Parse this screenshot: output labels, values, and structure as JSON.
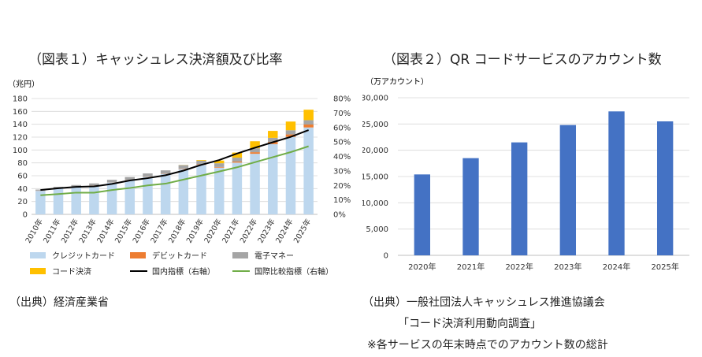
{
  "chart_data": [
    {
      "type": "bar",
      "title": "（図表１）キャッシュレス決済額及び比率",
      "ylabel": "（兆円）",
      "ylim": [
        0,
        180
      ],
      "y2lim": [
        0,
        0.8
      ],
      "categories": [
        "2010年",
        "2011年",
        "2012年",
        "2013年",
        "2014年",
        "2015年",
        "2016年",
        "2017年",
        "2018年",
        "2019年",
        "2020年",
        "2021年",
        "2022年",
        "2023年",
        "2024年",
        "2025年"
      ],
      "yticks": [
        "0",
        "20",
        "40",
        "60",
        "80",
        "100",
        "120",
        "140",
        "160",
        "180"
      ],
      "y2ticks": [
        "0%",
        "10%",
        "20%",
        "30%",
        "40%",
        "50%",
        "60%",
        "70%",
        "80%"
      ],
      "stacked": true,
      "series": [
        {
          "name": "クレジットカード",
          "color": "#bdd7ee",
          "values": [
            36.6,
            40.5,
            42.8,
            44.7,
            49.5,
            53.0,
            58.1,
            62.8,
            70.5,
            76.9,
            72.6,
            80.4,
            94.1,
            109.2,
            120.3,
            135.0
          ]
        },
        {
          "name": "デビットカード",
          "color": "#ed7d31",
          "values": [
            0.3,
            0.3,
            0.3,
            0.3,
            0.3,
            0.4,
            0.4,
            0.4,
            0.6,
            0.8,
            1.0,
            1.7,
            2.5,
            3.3,
            3.9,
            4.6
          ]
        },
        {
          "name": "電子マネー",
          "color": "#a5a5a5",
          "values": [
            1.6,
            2.0,
            2.5,
            3.1,
            3.9,
            4.6,
            5.1,
            5.2,
            5.4,
            5.7,
            5.8,
            6.0,
            6.1,
            6.4,
            6.5,
            6.8
          ]
        },
        {
          "name": "コード決済",
          "color": "#ffc000",
          "values": [
            0,
            0,
            0,
            0,
            0,
            0,
            0,
            0,
            0.2,
            1.0,
            4.2,
            7.9,
            10.9,
            10.8,
            13.5,
            16.2
          ]
        }
      ],
      "lines": [
        {
          "name": "国内指標（右軸）",
          "color": "#000000",
          "axis": "right",
          "values": [
            0.168,
            0.18,
            0.19,
            0.193,
            0.21,
            0.234,
            0.25,
            0.27,
            0.302,
            0.342,
            0.375,
            0.42,
            0.46,
            0.498,
            0.535,
            0.582
          ]
        },
        {
          "name": "国際比較指標（右軸）",
          "color": "#70ad47",
          "axis": "right",
          "values": [
            0.132,
            0.14,
            0.15,
            0.15,
            0.168,
            0.182,
            0.2,
            0.212,
            0.24,
            0.268,
            0.296,
            0.325,
            0.36,
            0.395,
            0.43,
            0.47
          ]
        }
      ]
    },
    {
      "type": "bar",
      "title": "（図表２）QR コードサービスのアカウント数",
      "ylabel": "（万アカウント）",
      "ylim": [
        0,
        30000
      ],
      "categories": [
        "2020年",
        "2021年",
        "2022年",
        "2023年",
        "2024年",
        "2025年"
      ],
      "yticks": [
        "0",
        "5,000",
        "10,000",
        "15,000",
        "20,000",
        "25,000",
        "30,000"
      ],
      "series": [
        {
          "name": "",
          "color": "#4472c4",
          "values": [
            15400,
            18500,
            21500,
            24800,
            27400,
            25500
          ]
        }
      ]
    }
  ],
  "source_left": "（出典）経済産業省",
  "source_right_1": "（出典）一般社団法人キャッシュレス推進協議会",
  "source_right_2": "「コード決済利用動向調査」",
  "source_right_3": "※各サービスの年末時点でのアカウント数の総計"
}
